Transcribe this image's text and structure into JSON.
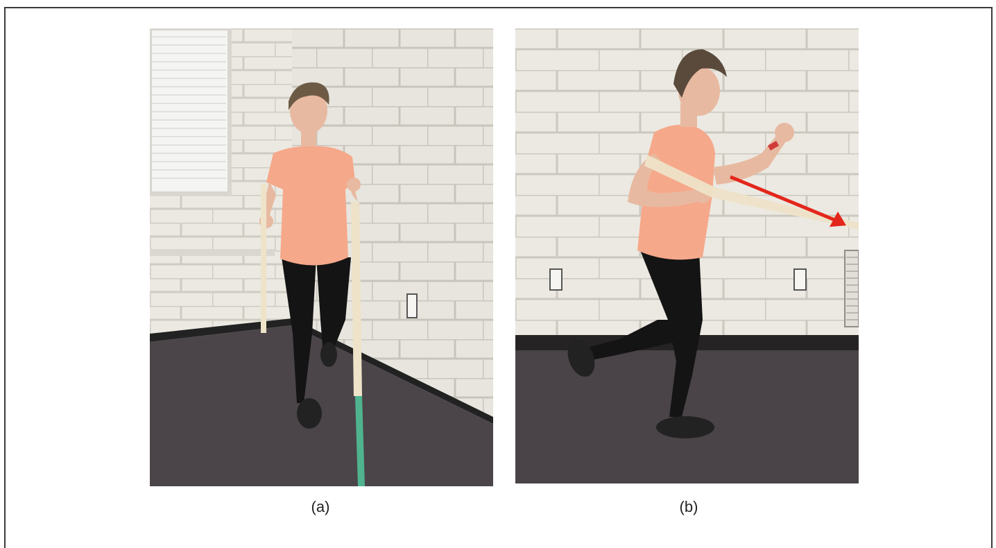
{
  "figure": {
    "panels": [
      {
        "label": "(a)",
        "subject": "woman-front-view-band-exercise"
      },
      {
        "label": "(b)",
        "subject": "woman-side-view-band-exercise",
        "arrow_color": "#e3261b"
      }
    ]
  },
  "colors": {
    "wall": "#e9e7e0",
    "mortar": "#c9c6bd",
    "carpet": "#4a4449",
    "shirt": "#f6a88a",
    "pants": "#141414",
    "skin": "#e8b9a1",
    "hair": "#5a4a3c",
    "band_light": "#eee3c8",
    "band_green": "#4fb38f"
  }
}
